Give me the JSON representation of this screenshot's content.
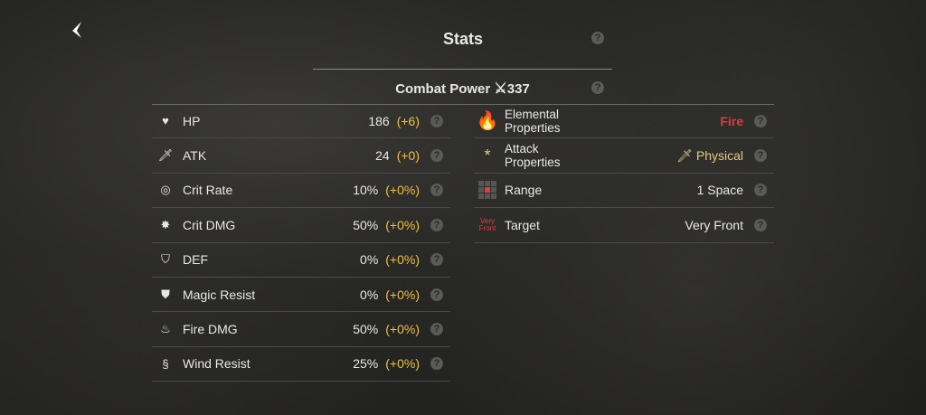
{
  "header": {
    "title": "Stats",
    "back_icon": "chevron-left-icon"
  },
  "combat_power": {
    "label": "Combat Power",
    "value": "337",
    "icon": "crossed-swords-icon"
  },
  "colors": {
    "bonus": "#f0c040",
    "fire": "#e53a3a",
    "physical": "#e0cc80"
  },
  "stats": [
    {
      "label": "HP",
      "value": "186",
      "bonus": "(+6)",
      "icon": "heart-icon"
    },
    {
      "label": "ATK",
      "value": "24",
      "bonus": "(+0)",
      "icon": "sword-icon"
    },
    {
      "label": "Crit Rate",
      "value": "10%",
      "bonus": "(+0%)",
      "icon": "target-icon"
    },
    {
      "label": "Crit DMG",
      "value": "50%",
      "bonus": "(+0%)",
      "icon": "burst-icon"
    },
    {
      "label": "DEF",
      "value": "0%",
      "bonus": "(+0%)",
      "icon": "shield-icon"
    },
    {
      "label": "Magic Resist",
      "value": "0%",
      "bonus": "(+0%)",
      "icon": "magic-shield-icon"
    },
    {
      "label": "Fire DMG",
      "value": "50%",
      "bonus": "(+0%)",
      "icon": "flame-icon"
    },
    {
      "label": "Wind Resist",
      "value": "25%",
      "bonus": "(+0%)",
      "icon": "wind-shield-icon"
    }
  ],
  "properties": [
    {
      "label1": "Elemental",
      "label2": "Properties",
      "value": "Fire",
      "icon": "fire-icon"
    },
    {
      "label1": "Attack",
      "label2": "Properties",
      "value": "Physical",
      "icon": "asterisk-icon"
    },
    {
      "label1": "Range",
      "value": "1 Space",
      "icon": "range-grid-icon"
    },
    {
      "label1": "Target",
      "value": "Very Front",
      "icon_text1": "Very",
      "icon_text2": "Front"
    }
  ]
}
